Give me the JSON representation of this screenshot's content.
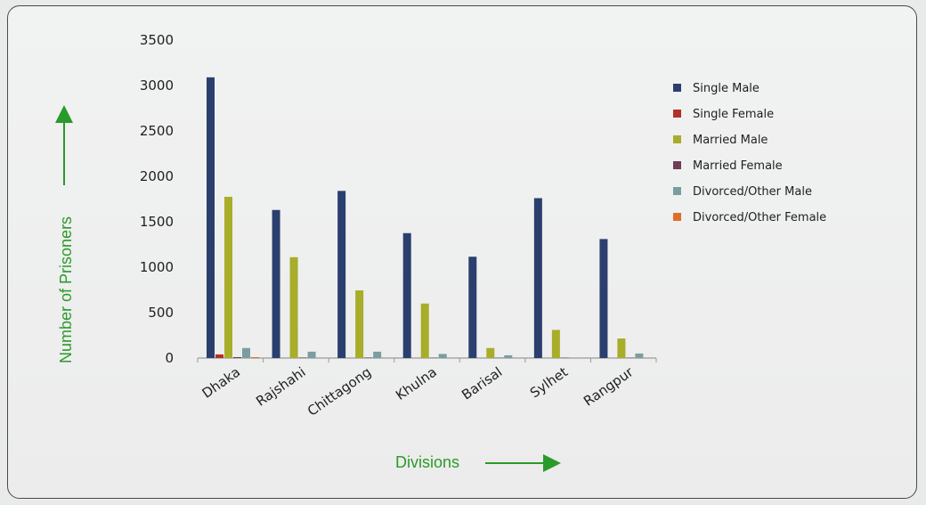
{
  "chart_data": {
    "type": "bar",
    "xlabel": "Divisions",
    "ylabel": "Number of Prisoners",
    "ylim": [
      0,
      3500
    ],
    "yticks": [
      0,
      500,
      1000,
      1500,
      2000,
      2500,
      3000,
      3500
    ],
    "categories": [
      "Dhaka",
      "Rajshahi",
      "Chittagong",
      "Khulna",
      "Barisal",
      "Sylhet",
      "Rangpur"
    ],
    "series": [
      {
        "name": "Single Male",
        "color": "#2b3f6e",
        "values": [
          3090,
          1630,
          1840,
          1375,
          1115,
          1760,
          1310
        ]
      },
      {
        "name": "Single Female",
        "color": "#b2302a",
        "values": [
          40,
          0,
          0,
          0,
          0,
          0,
          0
        ]
      },
      {
        "name": "Married Male",
        "color": "#a8ad2a",
        "values": [
          1775,
          1110,
          745,
          600,
          110,
          310,
          215
        ]
      },
      {
        "name": "Married Female",
        "color": "#6e3d56",
        "values": [
          10,
          5,
          5,
          3,
          3,
          3,
          3
        ]
      },
      {
        "name": "Divorced/Other Male",
        "color": "#7a9da0",
        "values": [
          110,
          70,
          70,
          45,
          30,
          0,
          50
        ]
      },
      {
        "name": "Divorced/Other Female",
        "color": "#e06c2c",
        "values": [
          10,
          0,
          0,
          0,
          0,
          0,
          0
        ]
      }
    ],
    "legend_position": "right",
    "grid": false
  }
}
